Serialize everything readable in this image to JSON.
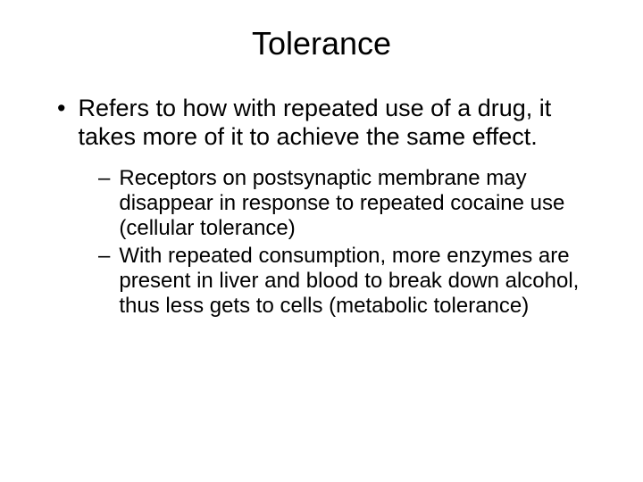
{
  "slide": {
    "title": "Tolerance",
    "main_bullet": "Refers to how with repeated use of a drug, it takes more of it to achieve the same effect.",
    "sub_bullets": [
      "Receptors on postsynaptic membrane may disappear in response to repeated cocaine use (cellular tolerance)",
      "With repeated consumption, more enzymes are present in liver and blood to break down alcohol, thus less gets to cells (metabolic tolerance)"
    ],
    "colors": {
      "background": "#ffffff",
      "text": "#000000"
    },
    "typography": {
      "title_fontsize": 36,
      "main_fontsize": 27,
      "sub_fontsize": 24,
      "font_family": "Arial"
    }
  }
}
